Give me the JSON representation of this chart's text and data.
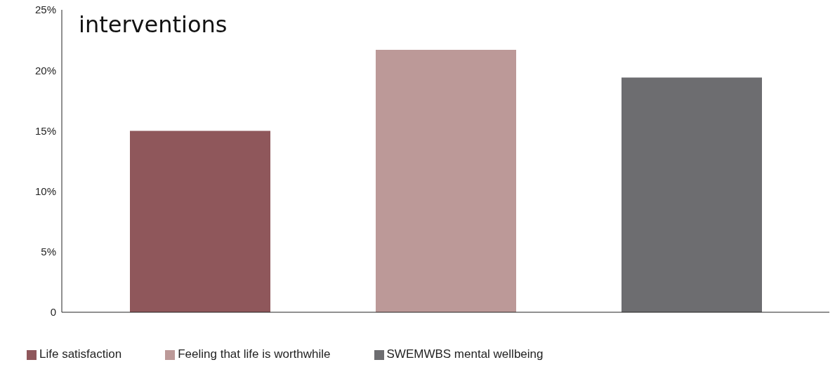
{
  "chart_data": {
    "type": "bar",
    "title": "interventions",
    "categories": [
      null
    ],
    "series": [
      {
        "name": "Life satisfaction",
        "color": "#8f575b",
        "values": [
          15
        ]
      },
      {
        "name": "Feeling that life is worthwhile",
        "color": "#bc9998",
        "values": [
          21.7
        ]
      },
      {
        "name": "SWEMWBS mental wellbeing",
        "color": "#6d6d70",
        "values": [
          19.4
        ]
      }
    ],
    "ylim": [
      0,
      25
    ],
    "yticks": [
      {
        "value": 0,
        "label": "0"
      },
      {
        "value": 5,
        "label": "5%"
      },
      {
        "value": 10,
        "label": "10%"
      },
      {
        "value": 15,
        "label": "15%"
      },
      {
        "value": 20,
        "label": "20%"
      },
      {
        "value": 25,
        "label": "25%"
      }
    ],
    "grid": false,
    "legend": "bottom left"
  }
}
